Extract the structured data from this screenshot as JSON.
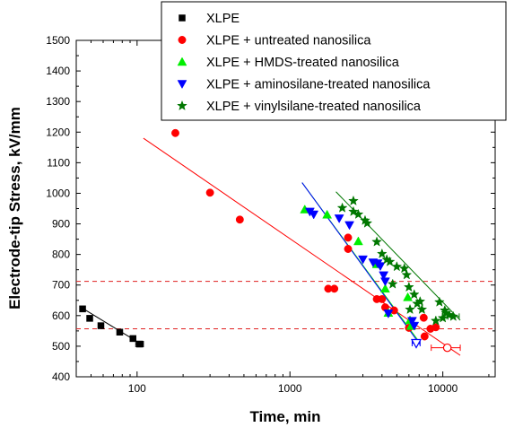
{
  "chart_data": {
    "type": "scatter",
    "xlabel": "Time, min",
    "ylabel": "Electrode-tip Stress, kV/mm",
    "x_scale": "log",
    "xlim": [
      40,
      22000
    ],
    "ylim": [
      400,
      1500
    ],
    "x_ticks": [
      {
        "value": 100,
        "label": "100"
      },
      {
        "value": 1000,
        "label": "1000"
      },
      {
        "value": 10000,
        "label": "10000"
      }
    ],
    "y_ticks": [
      400,
      500,
      600,
      700,
      800,
      900,
      1000,
      1100,
      1200,
      1300,
      1400,
      1500
    ],
    "legend_position": "top-right",
    "reference_lines": [
      {
        "y": 712,
        "style": "dashed",
        "color": "#e02020"
      },
      {
        "y": 557,
        "style": "dashed",
        "color": "#e02020"
      }
    ],
    "series": [
      {
        "name": "XLPE",
        "marker": "square",
        "color": "#000000",
        "points": [
          [
            44,
            622
          ],
          [
            49,
            591
          ],
          [
            58,
            567
          ],
          [
            77,
            546
          ],
          [
            94,
            525
          ],
          [
            104,
            507
          ]
        ],
        "fit": [
          [
            42,
            630
          ],
          [
            108,
            505
          ]
        ],
        "open_points": [],
        "error_bars": [
          {
            "x": 104,
            "y": 507,
            "xmin": 98,
            "xmax": 110
          }
        ]
      },
      {
        "name": "XLPE + untreated nanosilica",
        "marker": "circle",
        "color": "#ff0000",
        "points": [
          [
            178,
            1197
          ],
          [
            300,
            1002
          ],
          [
            470,
            914
          ],
          [
            1780,
            688
          ],
          [
            1950,
            688
          ],
          [
            2400,
            855
          ],
          [
            2400,
            818
          ],
          [
            3700,
            654
          ],
          [
            4000,
            654
          ],
          [
            4200,
            627
          ],
          [
            4800,
            617
          ],
          [
            6000,
            560
          ],
          [
            7500,
            593
          ],
          [
            7600,
            532
          ],
          [
            8300,
            557
          ],
          [
            9000,
            562
          ]
        ],
        "fit": [
          [
            110,
            1180
          ],
          [
            13000,
            470
          ]
        ],
        "open_points": [
          [
            10700,
            495
          ]
        ],
        "error_bars": [
          {
            "x": 10700,
            "y": 495,
            "xmin": 8400,
            "xmax": 13000
          }
        ]
      },
      {
        "name": "XLPE + HMDS-treated nanosilica",
        "marker": "triangle-up",
        "color": "#00ee00",
        "points": [
          [
            1250,
            947
          ],
          [
            1750,
            930
          ],
          [
            2800,
            843
          ],
          [
            3700,
            768
          ],
          [
            4200,
            688
          ],
          [
            4400,
            609
          ],
          [
            5900,
            660
          ],
          [
            6100,
            585
          ],
          [
            6200,
            566
          ]
        ],
        "fit": [
          [
            1200,
            1035
          ],
          [
            7100,
            510
          ]
        ],
        "open_points": [],
        "error_bars": []
      },
      {
        "name": "XLPE + aminosilane-treated nanosilica",
        "marker": "triangle-down",
        "color": "#0000ff",
        "points": [
          [
            1350,
            940
          ],
          [
            1430,
            931
          ],
          [
            2100,
            918
          ],
          [
            2450,
            896
          ],
          [
            3000,
            784
          ],
          [
            3500,
            774
          ],
          [
            3750,
            771
          ],
          [
            3900,
            762
          ],
          [
            4100,
            732
          ],
          [
            4200,
            712
          ],
          [
            4400,
            607
          ],
          [
            6300,
            583
          ],
          [
            6500,
            567
          ]
        ],
        "fit": [
          [
            1200,
            1035
          ],
          [
            7100,
            505
          ]
        ],
        "open_points": [
          [
            6700,
            510
          ]
        ],
        "error_bars": [
          {
            "x": 6700,
            "y": 510,
            "xmin": 6300,
            "xmax": 7100
          }
        ]
      },
      {
        "name": "XLPE + vinylsilane-treated nanosilica",
        "marker": "star",
        "color": "#007700",
        "points": [
          [
            2200,
            952
          ],
          [
            2600,
            975
          ],
          [
            2600,
            940
          ],
          [
            2800,
            931
          ],
          [
            3100,
            911
          ],
          [
            3200,
            902
          ],
          [
            3700,
            841
          ],
          [
            4000,
            802
          ],
          [
            4300,
            783
          ],
          [
            4500,
            776
          ],
          [
            4700,
            703
          ],
          [
            5000,
            760
          ],
          [
            5600,
            754
          ],
          [
            5800,
            733
          ],
          [
            6000,
            693
          ],
          [
            6100,
            620
          ],
          [
            6500,
            669
          ],
          [
            6800,
            639
          ],
          [
            7100,
            646
          ],
          [
            7300,
            620
          ],
          [
            9000,
            583
          ],
          [
            9500,
            644
          ],
          [
            10000,
            592
          ],
          [
            10300,
            617
          ],
          [
            10500,
            608
          ],
          [
            11000,
            602
          ],
          [
            11700,
            597
          ]
        ],
        "fit": [
          [
            2000,
            1005
          ],
          [
            13000,
            585
          ]
        ],
        "open_points": [],
        "error_bars": [
          {
            "x": 11700,
            "y": 597,
            "xmin": 10800,
            "xmax": 12800
          }
        ]
      }
    ]
  }
}
